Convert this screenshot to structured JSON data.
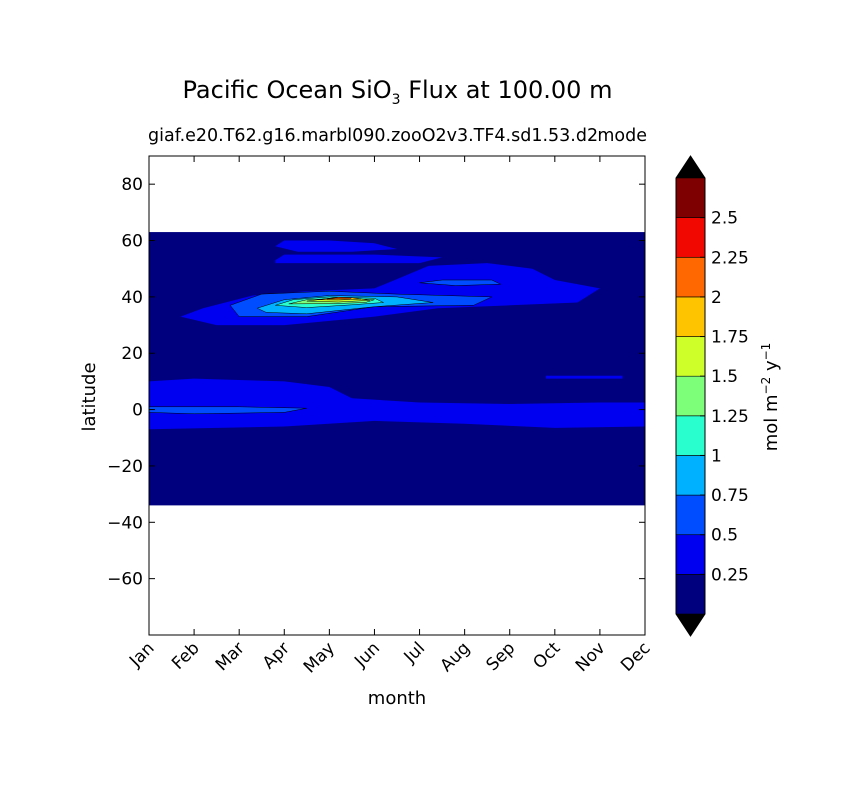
{
  "chart_data": {
    "type": "heatmap",
    "title_main": "Pacific Ocean SiO",
    "title_sub": "3",
    "title_rest": "Flux at 100.00 m",
    "subtitle": "giaf.e20.T62.g16.marbl090.zooO2v3.TF4.sd1.53.d2",
    "subtitle_right": "mode",
    "xlabel": "month",
    "ylabel": "latitude",
    "x_categories": [
      "Jan",
      "Feb",
      "Mar",
      "Apr",
      "May",
      "Jun",
      "Jul",
      "Aug",
      "Sep",
      "Oct",
      "Nov",
      "Dec"
    ],
    "ylim": [
      -80,
      90
    ],
    "yticks": [
      -60,
      -40,
      -20,
      0,
      20,
      40,
      60,
      80
    ],
    "ytick_labels": [
      "−60",
      "−40",
      "−20",
      "0",
      "20",
      "40",
      "60",
      "80"
    ],
    "data_extent_lat": [
      -34,
      63
    ],
    "colorbar": {
      "label_main": "mol m",
      "label_exp1": "−2",
      "label_mid": " y",
      "label_exp2": "−1",
      "levels": [
        0,
        0.25,
        0.5,
        0.75,
        1,
        1.25,
        1.5,
        1.75,
        2,
        2.25,
        2.5,
        2.75
      ],
      "tick_labels": [
        "0.25",
        "0.5",
        "0.75",
        "1",
        "1.25",
        "1.5",
        "1.75",
        "2",
        "2.25",
        "2.5"
      ],
      "tick_values": [
        0.25,
        0.5,
        0.75,
        1,
        1.25,
        1.5,
        1.75,
        2,
        2.25,
        2.5
      ],
      "colors": [
        "#00007f",
        "#0000f1",
        "#004dff",
        "#00b1ff",
        "#29ffce",
        "#7dff7a",
        "#ceff29",
        "#ffc400",
        "#ff6800",
        "#f10800",
        "#7f0000"
      ],
      "extend": "both",
      "under_color": "#000000",
      "over_color": "#000000"
    },
    "features": [
      {
        "level": 1,
        "points": [
          [
            0,
            10
          ],
          [
            1,
            11
          ],
          [
            3,
            10
          ],
          [
            4,
            8
          ],
          [
            4.5,
            4
          ],
          [
            6,
            2.5
          ],
          [
            8,
            2
          ],
          [
            10,
            2.5
          ],
          [
            11,
            2.5
          ],
          [
            11,
            -6
          ],
          [
            9,
            -6.5
          ],
          [
            7,
            -5
          ],
          [
            5,
            -4
          ],
          [
            3,
            -6
          ],
          [
            0,
            -7
          ]
        ]
      },
      {
        "level": 1,
        "points": [
          [
            0.7,
            33
          ],
          [
            1.2,
            36
          ],
          [
            2.3,
            40.5
          ],
          [
            3.5,
            42
          ],
          [
            5,
            43
          ],
          [
            5.6,
            47
          ],
          [
            6.2,
            51
          ],
          [
            7.5,
            52
          ],
          [
            8.5,
            50
          ],
          [
            9,
            46
          ],
          [
            10,
            43
          ],
          [
            9.5,
            38
          ],
          [
            8,
            37
          ],
          [
            6.4,
            36
          ],
          [
            5,
            33
          ],
          [
            3,
            30
          ],
          [
            1.5,
            30
          ]
        ]
      },
      {
        "level": 1,
        "points": [
          [
            2.8,
            58
          ],
          [
            3,
            60
          ],
          [
            4,
            60
          ],
          [
            5,
            59
          ],
          [
            5.5,
            57
          ],
          [
            4.5,
            56
          ],
          [
            3.3,
            56
          ]
        ]
      },
      {
        "level": 1,
        "points": [
          [
            2.8,
            53
          ],
          [
            3,
            55
          ],
          [
            5,
            55
          ],
          [
            6.5,
            54
          ],
          [
            6,
            52
          ],
          [
            4,
            52
          ],
          [
            2.8,
            52
          ]
        ]
      },
      {
        "level": 1,
        "points": [
          [
            8.8,
            12
          ],
          [
            10.5,
            12
          ],
          [
            10.5,
            11
          ],
          [
            8.8,
            11
          ]
        ]
      },
      {
        "level": 2,
        "points": [
          [
            0,
            1
          ],
          [
            2,
            1
          ],
          [
            3.5,
            0.5
          ],
          [
            3,
            -1
          ],
          [
            1,
            -1.5
          ],
          [
            0,
            -1
          ]
        ]
      },
      {
        "level": 2,
        "points": [
          [
            1.8,
            37
          ],
          [
            2.5,
            41
          ],
          [
            4,
            42
          ],
          [
            5.5,
            41
          ],
          [
            7.6,
            40
          ],
          [
            7.2,
            37
          ],
          [
            5,
            36.5
          ],
          [
            3.5,
            33
          ],
          [
            2,
            33
          ]
        ]
      },
      {
        "level": 2,
        "points": [
          [
            6,
            45
          ],
          [
            6.5,
            46
          ],
          [
            7.6,
            46
          ],
          [
            7.8,
            44.5
          ],
          [
            6.8,
            44
          ]
        ]
      },
      {
        "level": 3,
        "points": [
          [
            2.4,
            36
          ],
          [
            3,
            39
          ],
          [
            4,
            40.5
          ],
          [
            5.5,
            40
          ],
          [
            6.3,
            38
          ],
          [
            5,
            36.5
          ],
          [
            3.5,
            34
          ],
          [
            2.6,
            34.5
          ]
        ]
      },
      {
        "level": 4,
        "points": [
          [
            2.8,
            37
          ],
          [
            3.2,
            39
          ],
          [
            4,
            40
          ],
          [
            5,
            39.5
          ],
          [
            5.2,
            38
          ],
          [
            4.5,
            37.2
          ],
          [
            3.5,
            36.2
          ]
        ]
      },
      {
        "level": 5,
        "points": [
          [
            3.1,
            37.5
          ],
          [
            3.5,
            39
          ],
          [
            4.3,
            39.5
          ],
          [
            5,
            39
          ],
          [
            4.8,
            38
          ],
          [
            4.1,
            37.6
          ]
        ]
      },
      {
        "level": 6,
        "points": [
          [
            3.5,
            38.5
          ],
          [
            4,
            39.5
          ],
          [
            4.6,
            39.5
          ],
          [
            4.9,
            38.8
          ],
          [
            4.2,
            38.2
          ]
        ]
      },
      {
        "level": 7,
        "points": [
          [
            3.75,
            39
          ],
          [
            4.1,
            39.7
          ],
          [
            4.5,
            39.7
          ],
          [
            4.7,
            39.2
          ],
          [
            4.2,
            38.9
          ]
        ]
      },
      {
        "level": 8,
        "points": [
          [
            3.95,
            39.3
          ],
          [
            4.2,
            39.8
          ],
          [
            4.5,
            39.7
          ],
          [
            4.45,
            39.3
          ]
        ]
      }
    ]
  }
}
